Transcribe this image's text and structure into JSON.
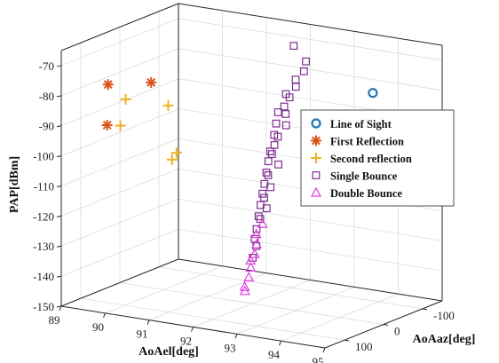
{
  "chart_data": {
    "type": "scatter",
    "title": "",
    "xlabel": "AoAel[deg]",
    "ylabel": "AoAaz[deg]",
    "zlabel": "PAP[dBm]",
    "x_range": [
      89,
      95
    ],
    "y_range": [
      150,
      -150
    ],
    "z_range": [
      -150,
      -65
    ],
    "x_ticks": [
      "89",
      "90",
      "91",
      "92",
      "93",
      "94",
      "95"
    ],
    "y_ticks": [
      "100",
      "0",
      "-100"
    ],
    "z_ticks": [
      "-70",
      "-80",
      "-90",
      "-100",
      "-110",
      "-120",
      "-130",
      "-140",
      "-150"
    ],
    "grid": true,
    "legend_position": "right",
    "series": [
      {
        "name": "Line of Sight",
        "marker": "circle",
        "color": "#1f77b4",
        "points": [
          [
            94.4,
            -40,
            -76.5
          ]
        ]
      },
      {
        "name": "First Reflection",
        "marker": "asterisk",
        "color": "#d95319",
        "points": [
          [
            89.8,
            120,
            -76
          ],
          [
            90.6,
            100,
            -74.5
          ],
          [
            89.6,
            100,
            -91
          ]
        ]
      },
      {
        "name": "Second reflection",
        "marker": "plus",
        "color": "#edb120",
        "points": [
          [
            90.2,
            120,
            -80
          ],
          [
            90.9,
            90,
            -82
          ],
          [
            89.9,
            100,
            -90.5
          ],
          [
            91.0,
            80,
            -98
          ],
          [
            90.9,
            80,
            -100.5
          ]
        ]
      },
      {
        "name": "Single Bounce",
        "marker": "square",
        "color": "#7e2f8e",
        "points": [
          [
            92.6,
            -40,
            -65
          ],
          [
            92.7,
            -60,
            -71
          ],
          [
            92.7,
            -55,
            -74
          ],
          [
            92.6,
            -45,
            -76.5
          ],
          [
            92.65,
            -40,
            -78.5
          ],
          [
            92.6,
            -20,
            -80
          ],
          [
            92.55,
            -35,
            -82
          ],
          [
            92.65,
            -10,
            -83.5
          ],
          [
            92.6,
            0,
            -85
          ],
          [
            92.55,
            -25,
            -87
          ],
          [
            92.6,
            5,
            -88.5
          ],
          [
            92.65,
            -15,
            -90
          ],
          [
            92.6,
            10,
            -92
          ],
          [
            92.55,
            -5,
            -93.5
          ],
          [
            92.65,
            15,
            -95
          ],
          [
            92.6,
            20,
            -97
          ],
          [
            92.55,
            10,
            -98.5
          ],
          [
            92.6,
            25,
            -100
          ],
          [
            92.65,
            5,
            -102
          ],
          [
            92.6,
            30,
            -103.5
          ],
          [
            92.55,
            20,
            -105
          ],
          [
            92.6,
            35,
            -107
          ],
          [
            92.65,
            25,
            -108.5
          ],
          [
            92.6,
            40,
            -110
          ],
          [
            92.55,
            30,
            -112
          ],
          [
            92.6,
            45,
            -113.5
          ],
          [
            92.65,
            35,
            -115
          ],
          [
            92.6,
            50,
            -117
          ],
          [
            92.55,
            40,
            -118.5
          ],
          [
            92.6,
            55,
            -121
          ],
          [
            92.6,
            60,
            -124
          ],
          [
            92.55,
            50,
            -127
          ],
          [
            92.6,
            65,
            -130
          ]
        ]
      },
      {
        "name": "Double Bounce",
        "marker": "triangle",
        "color": "#e03ce0",
        "points": [
          [
            92.6,
            40,
            -120
          ],
          [
            92.55,
            50,
            -123
          ],
          [
            92.6,
            55,
            -126
          ],
          [
            92.6,
            60,
            -129
          ],
          [
            92.55,
            65,
            -131
          ],
          [
            92.6,
            70,
            -133
          ],
          [
            92.6,
            75,
            -136
          ],
          [
            92.55,
            80,
            -139
          ],
          [
            92.6,
            85,
            -140
          ]
        ]
      }
    ]
  }
}
